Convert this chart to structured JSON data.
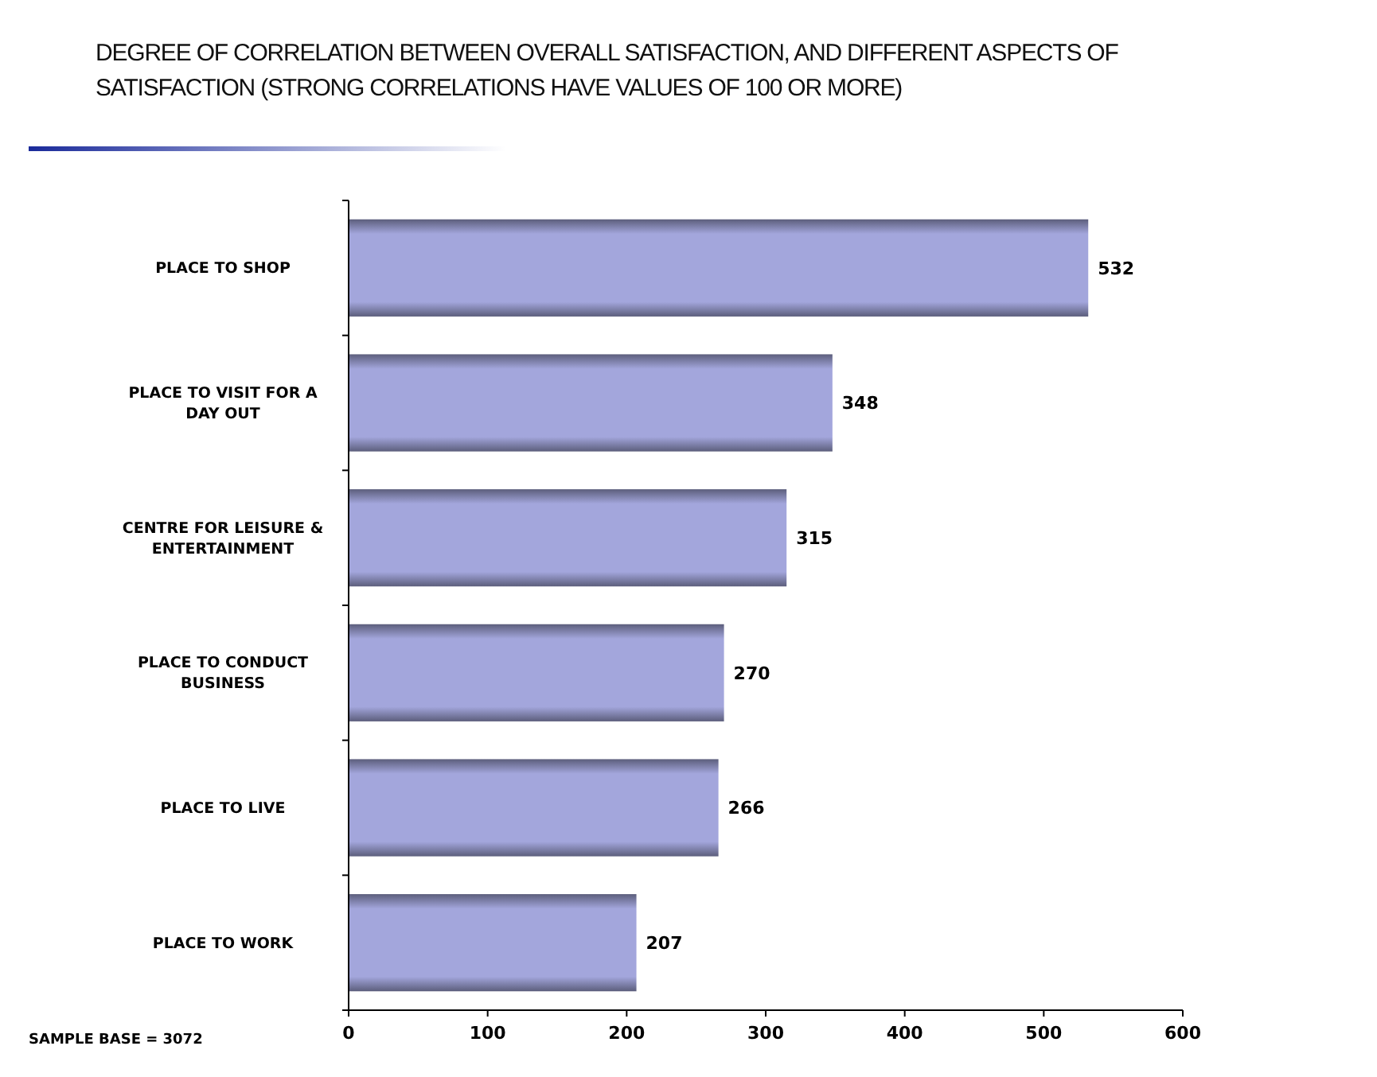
{
  "chart_data": {
    "type": "bar",
    "orientation": "horizontal",
    "title": "DEGREE OF CORRELATION BETWEEN OVERALL SATISFACTION, AND DIFFERENT ASPECTS OF SATISFACTION (STRONG CORRELATIONS HAVE VALUES OF 100 OR MORE)",
    "categories": [
      "PLACE TO SHOP",
      "PLACE TO VISIT FOR A DAY OUT",
      "CENTRE FOR LEISURE & ENTERTAINMENT",
      "PLACE TO CONDUCT BUSINESS",
      "PLACE TO LIVE",
      "PLACE TO WORK"
    ],
    "values": [
      532,
      348,
      315,
      270,
      266,
      207
    ],
    "color": "#a3a6dc",
    "xlim": [
      0,
      600
    ],
    "xticks": [
      0,
      100,
      200,
      300,
      400,
      500,
      600
    ],
    "data_labels": true,
    "grid": false,
    "annotations": [
      "SAMPLE BASE = 3072"
    ]
  }
}
